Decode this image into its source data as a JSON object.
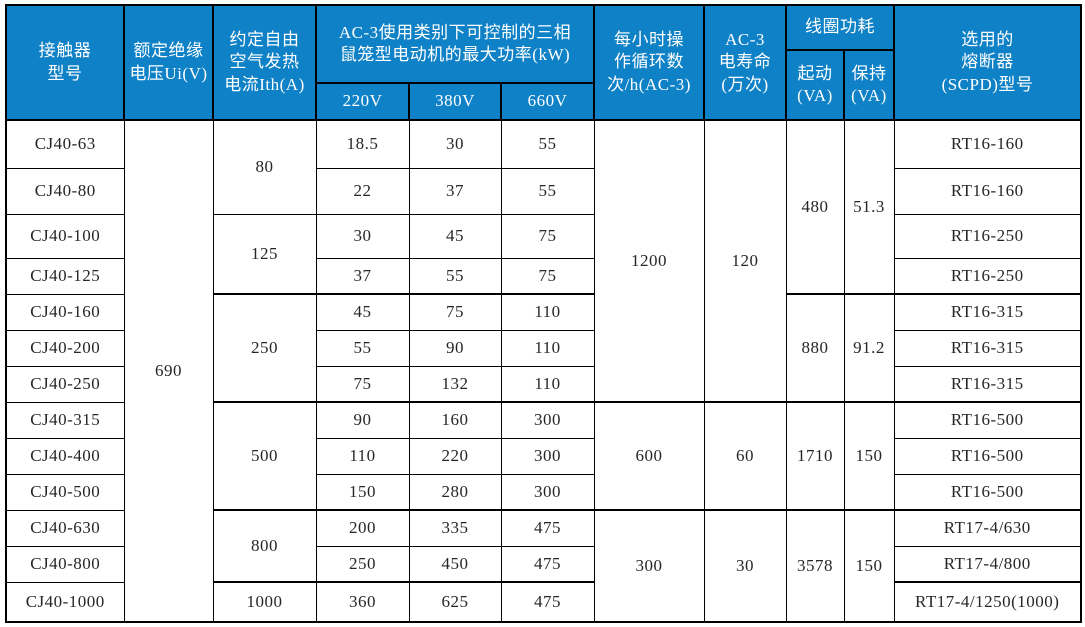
{
  "page": {
    "header_bg": "#0f81c6",
    "header_text_color": "#ffffff",
    "border_color": "#000000",
    "body_text_color": "#262626"
  },
  "table": {
    "header": {
      "contactor_model": "接触器\n型号",
      "rated_insulation_voltage": "额定绝缘\n电压Ui(V)",
      "thermal_current": "约定自由\n空气发热\n电流Ith(A)",
      "ac3_max_power": "AC-3使用类别下可控制的三相\n鼠笼型电动机的最大功率(kW)",
      "voltage_cols": [
        "220V",
        "380V",
        "660V"
      ],
      "cycles_per_hour": "每小时操\n作循环数\n次/h(AC-3)",
      "electrical_life": "AC-3\n电寿命\n(万次)",
      "coil_power": "线圈功耗",
      "coil_start": "起动\n(VA)",
      "coil_hold": "保持\n(VA)",
      "fuse": "选用的\n熔断器\n(SCPD)型号"
    },
    "insulation_voltage": "690",
    "ith_groups": [
      "80",
      "125",
      "250",
      "500",
      "800",
      "1000"
    ],
    "cycles_groups": [
      "1200",
      "600",
      "300"
    ],
    "life_groups": [
      "120",
      "60",
      "30"
    ],
    "coil_start_groups": [
      "480",
      "880",
      "1710",
      "3578"
    ],
    "coil_hold_groups": [
      "51.3",
      "91.2",
      "150",
      "150"
    ],
    "rows": [
      {
        "model": "CJ40-63",
        "p220": "18.5",
        "p380": "30",
        "p660": "55",
        "fuse": "RT16-160"
      },
      {
        "model": "CJ40-80",
        "p220": "22",
        "p380": "37",
        "p660": "55",
        "fuse": "RT16-160"
      },
      {
        "model": "CJ40-100",
        "p220": "30",
        "p380": "45",
        "p660": "75",
        "fuse": "RT16-250"
      },
      {
        "model": "CJ40-125",
        "p220": "37",
        "p380": "55",
        "p660": "75",
        "fuse": "RT16-250"
      },
      {
        "model": "CJ40-160",
        "p220": "45",
        "p380": "75",
        "p660": "110",
        "fuse": "RT16-315"
      },
      {
        "model": "CJ40-200",
        "p220": "55",
        "p380": "90",
        "p660": "110",
        "fuse": "RT16-315"
      },
      {
        "model": "CJ40-250",
        "p220": "75",
        "p380": "132",
        "p660": "110",
        "fuse": "RT16-315"
      },
      {
        "model": "CJ40-315",
        "p220": "90",
        "p380": "160",
        "p660": "300",
        "fuse": "RT16-500"
      },
      {
        "model": "CJ40-400",
        "p220": "110",
        "p380": "220",
        "p660": "300",
        "fuse": "RT16-500"
      },
      {
        "model": "CJ40-500",
        "p220": "150",
        "p380": "280",
        "p660": "300",
        "fuse": "RT16-500"
      },
      {
        "model": "CJ40-630",
        "p220": "200",
        "p380": "335",
        "p660": "475",
        "fuse": "RT17-4/630"
      },
      {
        "model": "CJ40-800",
        "p220": "250",
        "p380": "450",
        "p660": "475",
        "fuse": "RT17-4/800"
      },
      {
        "model": "CJ40-1000",
        "p220": "360",
        "p380": "625",
        "p660": "475",
        "fuse": "RT17-4/1250(1000)"
      }
    ]
  }
}
